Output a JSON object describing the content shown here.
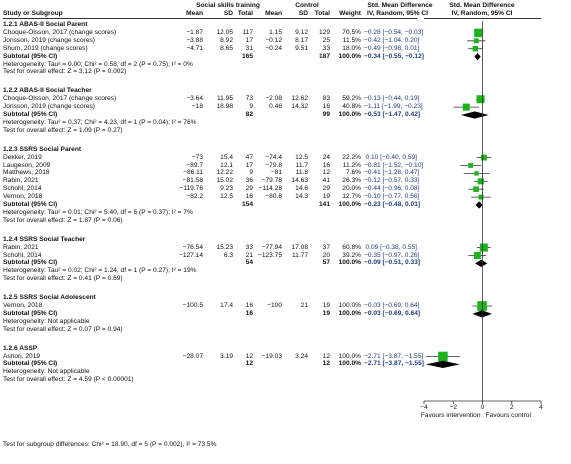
{
  "chart_data": {
    "type": "forest",
    "header": {
      "group1": "Social skills training",
      "group2": "Control",
      "col_study": "Study or Subgroup",
      "col_mean1": "Mean",
      "col_sd1": "SD",
      "col_total1": "Total",
      "col_mean2": "Mean",
      "col_sd2": "SD",
      "col_total2": "Total",
      "col_weight": "Weight",
      "col_smd": "Std. Mean Difference",
      "col_smd_sub": "IV, Random, 95% CI",
      "col_plot": "Std. Mean Difference",
      "col_plot_sub": "IV, Random, 95% CI"
    },
    "subgroups": [
      {
        "title": "1.2.1 ABAS-II Social Parent",
        "studies": [
          {
            "name": "Choque-Olsson, 2017 (change scores)",
            "m1": "−1.87",
            "sd1": "12.05",
            "n1": "117",
            "m2": "1.15",
            "sd2": "9.12",
            "n2": "129",
            "w": "70.5%",
            "ci": "−0.28 [−0.54, −0.03]",
            "est": -0.28,
            "lo": -0.54,
            "hi": -0.03
          },
          {
            "name": "Jonsson, 2019 (change scores)",
            "m1": "−3.88",
            "sd1": "8.92",
            "n1": "17",
            "m2": "−0.12",
            "sd2": "8.17",
            "n2": "25",
            "w": "11.5%",
            "ci": "−0.42 [−1.04, 0.20]",
            "est": -0.42,
            "lo": -1.04,
            "hi": 0.2
          },
          {
            "name": "Shum, 2019 (change scores)",
            "m1": "−4.71",
            "sd1": "8.65",
            "n1": "31",
            "m2": "−0.24",
            "sd2": "9.51",
            "n2": "33",
            "w": "18.0%",
            "ci": "−0.49 [−0.98, 0.01]",
            "est": -0.49,
            "lo": -0.98,
            "hi": 0.01
          }
        ],
        "subtotal": {
          "label": "Subtotal (95% CI)",
          "n1": "165",
          "n2": "187",
          "w": "100.0%",
          "ci": "−0.34 [−0.55, −0.12]",
          "est": -0.34,
          "lo": -0.55,
          "hi": -0.12
        },
        "het": "Heterogeneity: Tau² = 0.00; Chi² = 0.58, df = 2 (P = 0.75); I² = 0%",
        "test": "Test for overall effect: Z = 3.12 (P = 0.002)"
      },
      {
        "title": "1.2.2 ABAS-II Social Teacher",
        "studies": [
          {
            "name": "Choque-Olsson, 2017 (change scores)",
            "m1": "−3.64",
            "sd1": "11.95",
            "n1": "73",
            "m2": "−2.08",
            "sd2": "12.62",
            "n2": "83",
            "w": "59.2%",
            "ci": "−0.13 [−0.44, 0.19]",
            "est": -0.13,
            "lo": -0.44,
            "hi": 0.19
          },
          {
            "name": "Jonsson, 2019 (change scores)",
            "m1": "−18",
            "sd1": "18.98",
            "n1": "9",
            "m2": "0.46",
            "sd2": "14.32",
            "n2": "16",
            "w": "40.8%",
            "ci": "−1.11 [−1.99, −0.23]",
            "est": -1.11,
            "lo": -1.99,
            "hi": -0.23
          }
        ],
        "subtotal": {
          "label": "Subtotal (95% CI)",
          "n1": "82",
          "n2": "99",
          "w": "100.0%",
          "ci": "−0.53 [−1.47, 0.42]",
          "est": -0.53,
          "lo": -1.47,
          "hi": 0.42
        },
        "het": "Heterogeneity: Tau² = 0.37; Chi² = 4.23, df = 1 (P = 0.04); I² = 76%",
        "test": "Test for overall effect: Z = 1.09 (P = 0.27)"
      },
      {
        "title": "1.2.3 SSRS Social Parent",
        "studies": [
          {
            "name": "Dekker, 2019",
            "m1": "−73",
            "sd1": "15.4",
            "n1": "47",
            "m2": "−74.4",
            "sd2": "12.5",
            "n2": "24",
            "w": "22.2%",
            "ci": "0.10 [−0.40, 0.59]",
            "est": 0.1,
            "lo": -0.4,
            "hi": 0.59
          },
          {
            "name": "Laugeson, 2009",
            "m1": "−89.7",
            "sd1": "12.1",
            "n1": "17",
            "m2": "−79.8",
            "sd2": "11.7",
            "n2": "16",
            "w": "11.2%",
            "ci": "−0.81 [−1.52, −0.10]",
            "est": -0.81,
            "lo": -1.52,
            "hi": -0.1
          },
          {
            "name": "Matthews, 2018",
            "m1": "−86.11",
            "sd1": "12.22",
            "n1": "9",
            "m2": "−81",
            "sd2": "11.8",
            "n2": "12",
            "w": "7.6%",
            "ci": "−0.41 [−1.28, 0.47]",
            "est": -0.41,
            "lo": -1.28,
            "hi": 0.47
          },
          {
            "name": "Rabin, 2021",
            "m1": "−81.58",
            "sd1": "15.02",
            "n1": "36",
            "m2": "−79.78",
            "sd2": "14.63",
            "n2": "41",
            "w": "26.3%",
            "ci": "−0.12 [−0.57, 0.33]",
            "est": -0.12,
            "lo": -0.57,
            "hi": 0.33
          },
          {
            "name": "Schohl, 2014",
            "m1": "−119.76",
            "sd1": "9.23",
            "n1": "29",
            "m2": "−114.28",
            "sd2": "14.6",
            "n2": "29",
            "w": "20.0%",
            "ci": "−0.44 [−0.96, 0.08]",
            "est": -0.44,
            "lo": -0.96,
            "hi": 0.08
          },
          {
            "name": "Vernon, 2018",
            "m1": "−82.2",
            "sd1": "12.5",
            "n1": "16",
            "m2": "−80.8",
            "sd2": "14.3",
            "n2": "19",
            "w": "12.7%",
            "ci": "−0.10 [−0.77, 0.56]",
            "est": -0.1,
            "lo": -0.77,
            "hi": 0.56
          }
        ],
        "subtotal": {
          "label": "Subtotal (95% CI)",
          "n1": "154",
          "n2": "141",
          "w": "100.0%",
          "ci": "−0.23 [−0.48, 0.01]",
          "est": -0.23,
          "lo": -0.48,
          "hi": 0.01
        },
        "het": "Heterogeneity: Tau² = 0.01; Chi² = 5.40, df = 5 (P = 0.37); I² = 7%",
        "test": "Test for overall effect: Z = 1.87 (P = 0.06)"
      },
      {
        "title": "1.2.4 SSRS Social Teacher",
        "studies": [
          {
            "name": "Rabin, 2021",
            "m1": "−76.54",
            "sd1": "15.23",
            "n1": "33",
            "m2": "−77.94",
            "sd2": "17.08",
            "n2": "37",
            "w": "60.8%",
            "ci": "0.09 [−0.38, 0.55]",
            "est": 0.09,
            "lo": -0.38,
            "hi": 0.55
          },
          {
            "name": "Schohl, 2014",
            "m1": "−127.14",
            "sd1": "6.3",
            "n1": "21",
            "m2": "−123.75",
            "sd2": "11.77",
            "n2": "20",
            "w": "39.2%",
            "ci": "−0.35 [−0.97, 0.26]",
            "est": -0.35,
            "lo": -0.97,
            "hi": 0.26
          }
        ],
        "subtotal": {
          "label": "Subtotal (95% CI)",
          "n1": "54",
          "n2": "57",
          "w": "100.0%",
          "ci": "−0.09 [−0.51, 0.33]",
          "est": -0.09,
          "lo": -0.51,
          "hi": 0.33
        },
        "het": "Heterogeneity: Tau² = 0.02; Chi² = 1.24, df = 1 (P = 0.27); I² = 19%",
        "test": "Test for overall effect: Z = 0.41 (P = 0.69)"
      },
      {
        "title": "1.2.5 SSRS Social Adolescent",
        "studies": [
          {
            "name": "Vernon, 2018",
            "m1": "−100.5",
            "sd1": "17.4",
            "n1": "16",
            "m2": "−100",
            "sd2": "21",
            "n2": "19",
            "w": "100.0%",
            "ci": "−0.03 [−0.69, 0.64]",
            "est": -0.03,
            "lo": -0.69,
            "hi": 0.64
          }
        ],
        "subtotal": {
          "label": "Subtotal (95% CI)",
          "n1": "16",
          "n2": "19",
          "w": "100.0%",
          "ci": "−0.03 [−0.69, 0.64]",
          "est": -0.03,
          "lo": -0.69,
          "hi": 0.64
        },
        "het": "Heterogeneity: Not applicable",
        "test": "Test for overall effect: Z = 0.07 (P = 0.94)"
      },
      {
        "title": "1.2.6 ASSP",
        "studies": [
          {
            "name": "Ashori, 2019",
            "m1": "−28.07",
            "sd1": "3.19",
            "n1": "12",
            "m2": "−19.03",
            "sd2": "3.24",
            "n2": "12",
            "w": "100.0%",
            "ci": "−2.71 [−3.87, −1.55]",
            "est": -2.71,
            "lo": -3.87,
            "hi": -1.55
          }
        ],
        "subtotal": {
          "label": "Subtotal (95% CI)",
          "n1": "12",
          "n2": "12",
          "w": "100.0%",
          "ci": "−2.71 [−3.87, −1.55]",
          "est": -2.71,
          "lo": -3.87,
          "hi": -1.55
        },
        "het": "Heterogeneity: Not applicable",
        "test": "Test for overall effect: Z = 4.59 (P < 0.00001)"
      }
    ],
    "subgroup_test": "Test for subgroup differences: Chi² = 18.90, df = 5 (P = 0.002), I² = 73.5%",
    "axis": {
      "min": -4,
      "max": 4,
      "ticks": [
        "−4",
        "−2",
        "0",
        "2",
        "4"
      ],
      "tick_values": [
        -4,
        -2,
        0,
        2,
        4
      ]
    },
    "favours_left": "Favours intervention",
    "favours_right": "Favours control",
    "colors": {
      "square": "#1db31d",
      "diamond": "#000000",
      "ci_text": "#1f3c7a"
    }
  }
}
